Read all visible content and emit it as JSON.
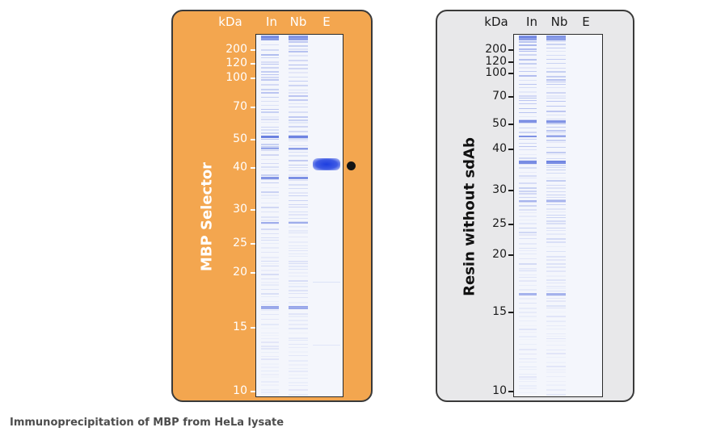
{
  "caption": "Immunoprecipitation of MBP from HeLa lysate",
  "panels": [
    {
      "id": "a",
      "side_label": "MBP Selector",
      "unit_label": "kDa",
      "lanes": [
        "In",
        "Nb",
        "E"
      ],
      "markers": [
        "200",
        "120",
        "100",
        "70",
        "50",
        "40",
        "30",
        "25",
        "20",
        "15",
        "10"
      ],
      "marker_values": [
        200,
        120,
        100,
        70,
        50,
        40,
        30,
        25,
        20,
        15,
        10
      ],
      "eluted_band_kda": 40,
      "eluted_band_marker": "●"
    },
    {
      "id": "b",
      "side_label": "Resin without sdAb",
      "unit_label": "kDa",
      "lanes": [
        "In",
        "Nb",
        "E"
      ],
      "markers": [
        "200",
        "120",
        "100",
        "70",
        "50",
        "40",
        "30",
        "25",
        "20",
        "15",
        "10"
      ],
      "marker_values": [
        200,
        120,
        100,
        70,
        50,
        40,
        30,
        25,
        20,
        15,
        10
      ]
    }
  ],
  "colors": {
    "panel_a_bg": "#f3a64f",
    "panel_b_bg": "#e8e8ea",
    "gel_bg": "#f4f6fc",
    "band": "#3553d6",
    "strong_band": "#1d3ee0"
  }
}
